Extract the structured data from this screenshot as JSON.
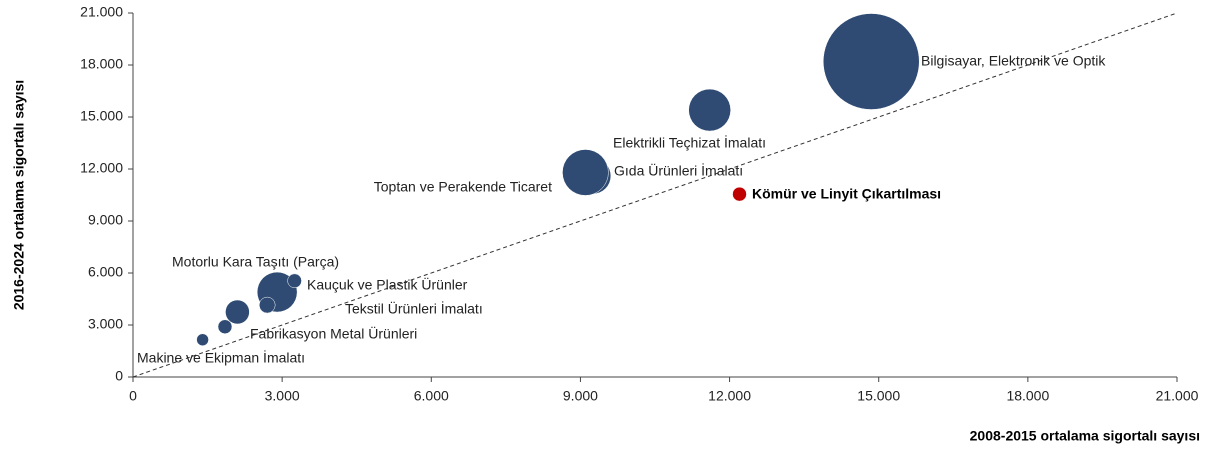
{
  "chart_data": {
    "type": "bubble",
    "xlabel": "2008-2015 ortalama sigortalı sayısı",
    "ylabel": "2016-2024 ortalama sigortalı sayısı",
    "categories": [
      "Bilgisayar, Elektronik ve Optik",
      "Elektrikli Teçhizat İmalatı",
      "Toptan ve Perakende Ticaret",
      "Gıda Ürünleri İmalatı",
      "Kömür ve Linyit Çıkartılması",
      "Motorlu Kara Taşıtı (Parça)",
      "Kauçuk ve Plastik Ürünler",
      "Tekstil Ürünleri İmalatı",
      "Fabrikasyon Metal Ürünleri",
      null,
      "Makine ve Ekipman İmalatı"
    ],
    "x": [
      14850,
      11600,
      9100,
      9250,
      12200,
      2900,
      3250,
      2700,
      2100,
      1850,
      1400
    ],
    "values": [
      18200,
      15400,
      11800,
      11600,
      10550,
      4900,
      5550,
      4150,
      3750,
      2900,
      2150
    ],
    "sizes": [
      48,
      21,
      23,
      18,
      7,
      20,
      7,
      8,
      12,
      7,
      6
    ],
    "colors": [
      "#2f4b73",
      "#2f4b73",
      "#2f4b73",
      "#2f4b73",
      "#c00000",
      "#2f4b73",
      "#2f4b73",
      "#2f4b73",
      "#2f4b73",
      "#2f4b73",
      "#2f4b73"
    ],
    "xlim": [
      0,
      21000
    ],
    "ylim": [
      0,
      21000
    ],
    "xticks": [
      0,
      {
        "value": 3000,
        "label": "3.000"
      },
      {
        "value": 6000,
        "label": "6.000"
      },
      {
        "value": 9000,
        "label": "9.000"
      },
      {
        "value": 12000,
        "label": "12.000"
      },
      {
        "value": 15000,
        "label": "15.000"
      },
      {
        "value": 18000,
        "label": "18.000"
      },
      {
        "value": 21000,
        "label": "21.000"
      }
    ],
    "yticks": [
      0,
      {
        "value": 3000,
        "label": "3.000"
      },
      {
        "value": 6000,
        "label": "6.000"
      },
      {
        "value": 9000,
        "label": "9.000"
      },
      {
        "value": 12000,
        "label": "12.000"
      },
      {
        "value": 15000,
        "label": "15.000"
      },
      {
        "value": 18000,
        "label": "18.000"
      },
      {
        "value": 21000,
        "label": "21.000"
      }
    ],
    "diagonal": true
  }
}
